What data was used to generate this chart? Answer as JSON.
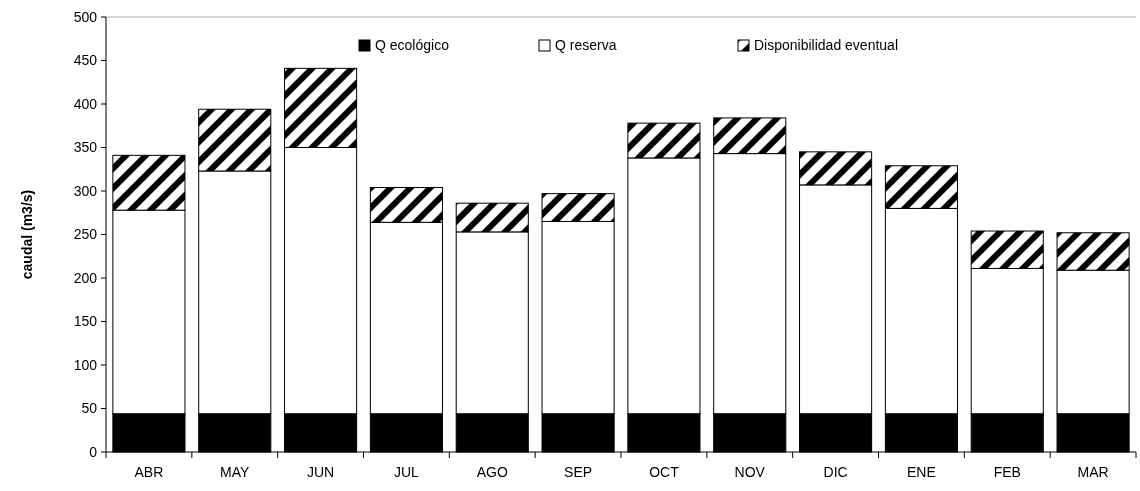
{
  "chart_data": {
    "type": "bar",
    "stacked": true,
    "ylabel": "caudal (m3/s)",
    "categories": [
      "ABR",
      "MAY",
      "JUN",
      "JUL",
      "AGO",
      "SEP",
      "OCT",
      "NOV",
      "DIC",
      "ENE",
      "FEB",
      "MAR"
    ],
    "series": [
      {
        "name": "Q ecológico",
        "color": "#000000",
        "values": [
          44,
          44,
          44,
          44,
          44,
          44,
          44,
          44,
          44,
          44,
          44,
          44
        ]
      },
      {
        "name": "Q reserva",
        "color": "#ffffff",
        "values": [
          234,
          279,
          306,
          220,
          209,
          221,
          294,
          299,
          263,
          236,
          167,
          165
        ]
      },
      {
        "name": "Disponibilidad eventual",
        "color": "#000000",
        "values": [
          63,
          71,
          91,
          40,
          33,
          32,
          40,
          41,
          38,
          49,
          43,
          43
        ]
      }
    ],
    "ylim": [
      0,
      500
    ],
    "yticks": [
      0,
      50,
      100,
      150,
      200,
      250,
      300,
      350,
      400,
      450,
      500
    ],
    "grid": false,
    "legend": "top"
  }
}
